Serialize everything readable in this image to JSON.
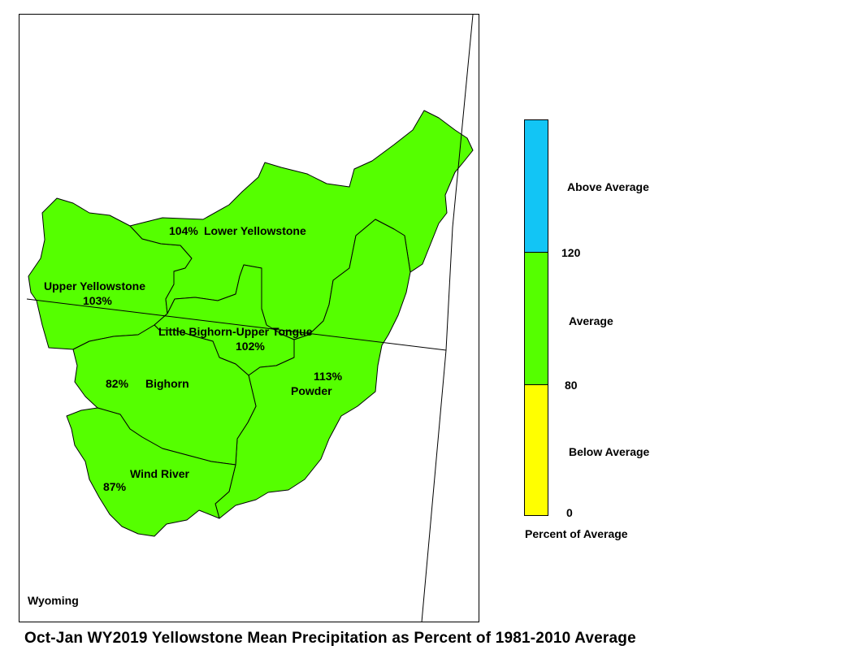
{
  "map": {
    "state_label": "Wyoming",
    "basin_fill_color": "#55ff00",
    "basins": [
      {
        "name": "Lower Yellowstone",
        "percent": "104%"
      },
      {
        "name": "Upper Yellowstone",
        "percent": "103%"
      },
      {
        "name": "Little Bighorn-Upper Tongue",
        "percent": "102%"
      },
      {
        "name": "Bighorn",
        "percent": "82%"
      },
      {
        "name": "Powder",
        "percent": "113%"
      },
      {
        "name": "Wind River",
        "percent": "87%"
      }
    ]
  },
  "legend": {
    "title": "Percent of Average",
    "categories": [
      {
        "label": "Above Average",
        "color": "#12c5f5"
      },
      {
        "label": "Average",
        "color": "#55ff00"
      },
      {
        "label": "Below Average",
        "color": "#ffff00"
      }
    ],
    "breaks": [
      "120",
      "80",
      "0"
    ]
  },
  "title": "Oct-Jan WY2019 Yellowstone Mean Precipitation as Percent of 1981-2010 Average"
}
